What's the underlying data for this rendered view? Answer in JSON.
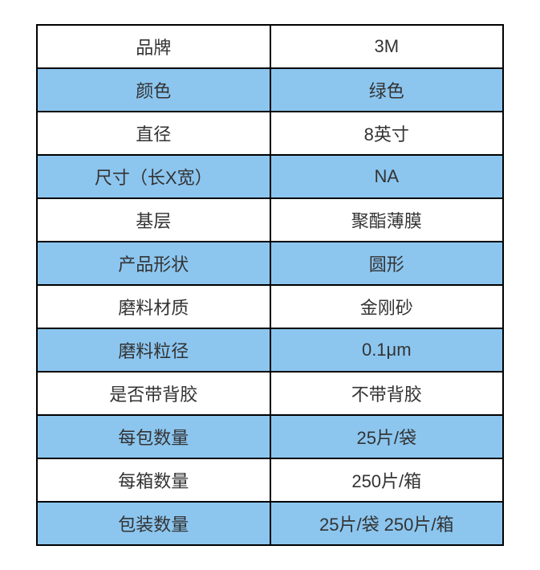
{
  "spec_table": {
    "type": "table",
    "columns": [
      "label",
      "value"
    ],
    "column_widths": [
      "50%",
      "50%"
    ],
    "border_color": "#000000",
    "border_width": 2,
    "row_colors": [
      "#ffffff",
      "#8cc6ef"
    ],
    "font_size": 22,
    "text_color": "#333333",
    "cell_alignment": "center",
    "rows": [
      {
        "label": "品牌",
        "value": "3M"
      },
      {
        "label": "颜色",
        "value": "绿色"
      },
      {
        "label": "直径",
        "value": "8英寸"
      },
      {
        "label": "尺寸（长X宽）",
        "value": "NA"
      },
      {
        "label": "基层",
        "value": "聚酯薄膜"
      },
      {
        "label": "产品形状",
        "value": "圆形"
      },
      {
        "label": "磨料材质",
        "value": "金刚砂"
      },
      {
        "label": "磨料粒径",
        "value": "0.1μm"
      },
      {
        "label": "是否带背胶",
        "value": "不带背胶"
      },
      {
        "label": "每包数量",
        "value": "25片/袋"
      },
      {
        "label": "每箱数量",
        "value": "250片/箱"
      },
      {
        "label": "包装数量",
        "value": "25片/袋 250片/箱"
      }
    ]
  }
}
